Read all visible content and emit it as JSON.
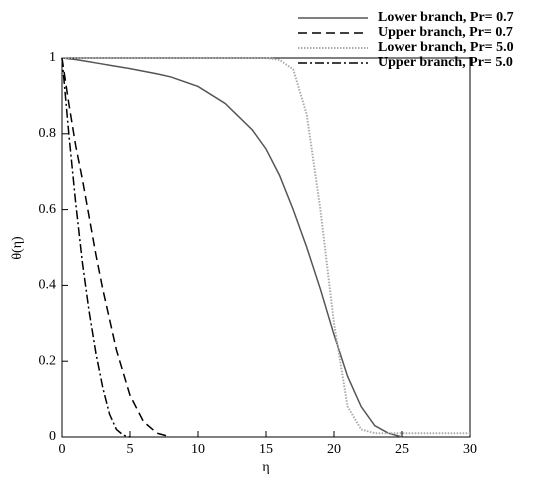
{
  "chart_data": {
    "type": "line",
    "x_label": "η",
    "y_label": "θ(η)",
    "x": [
      0,
      0.5,
      1,
      1.5,
      2,
      2.5,
      3,
      3.5,
      4,
      4.5,
      5,
      6,
      7,
      8,
      10,
      12,
      14,
      15,
      16,
      17,
      18,
      19,
      20,
      21,
      22,
      23,
      24,
      25,
      26,
      28,
      30
    ],
    "series": [
      {
        "name": "Lower branch, Pr= 0.7",
        "color": "#555555",
        "dash": "solid",
        "values": [
          1,
          0.998,
          0.996,
          0.993,
          0.99,
          0.987,
          0.984,
          0.981,
          0.978,
          0.975,
          0.972,
          0.965,
          0.958,
          0.95,
          0.925,
          0.88,
          0.81,
          0.76,
          0.69,
          0.6,
          0.5,
          0.39,
          0.27,
          0.16,
          0.08,
          0.03,
          0.01,
          0,
          null,
          null,
          null
        ]
      },
      {
        "name": "Upper branch, Pr= 0.7",
        "color": "#000000",
        "dash": "dashed",
        "values": [
          1,
          0.88,
          0.77,
          0.68,
          0.58,
          0.48,
          0.39,
          0.31,
          0.23,
          0.17,
          0.11,
          0.04,
          0.01,
          0,
          null,
          null,
          null,
          null,
          null,
          null,
          null,
          null,
          null,
          null,
          null,
          null,
          null,
          null,
          null,
          null,
          null
        ]
      },
      {
        "name": "Lower branch, Pr= 5.0",
        "color": "#aaaaaa",
        "dash": "dotted",
        "values": [
          1,
          1,
          1,
          1,
          1,
          1,
          1,
          1,
          1,
          1,
          1,
          1,
          1,
          1,
          1,
          1,
          1,
          1,
          0.995,
          0.97,
          0.85,
          0.6,
          0.3,
          0.08,
          0.02,
          0.01,
          0.01,
          0.01,
          0.01,
          0.01,
          0.01
        ]
      },
      {
        "name": "Upper branch, Pr= 5.0",
        "color": "#000000",
        "dash": "dashdot",
        "values": [
          1,
          0.8,
          0.62,
          0.46,
          0.33,
          0.22,
          0.13,
          0.06,
          0.02,
          0.005,
          0,
          null,
          null,
          null,
          null,
          null,
          null,
          null,
          null,
          null,
          null,
          null,
          null,
          null,
          null,
          null,
          null,
          null,
          null,
          null,
          null
        ]
      }
    ],
    "xlim": [
      0,
      30
    ],
    "ylim": [
      0,
      1
    ],
    "xticks": [
      0,
      5,
      10,
      15,
      20,
      25,
      30
    ],
    "yticks": [
      0,
      0.2,
      0.4,
      0.6,
      0.8,
      1
    ]
  }
}
